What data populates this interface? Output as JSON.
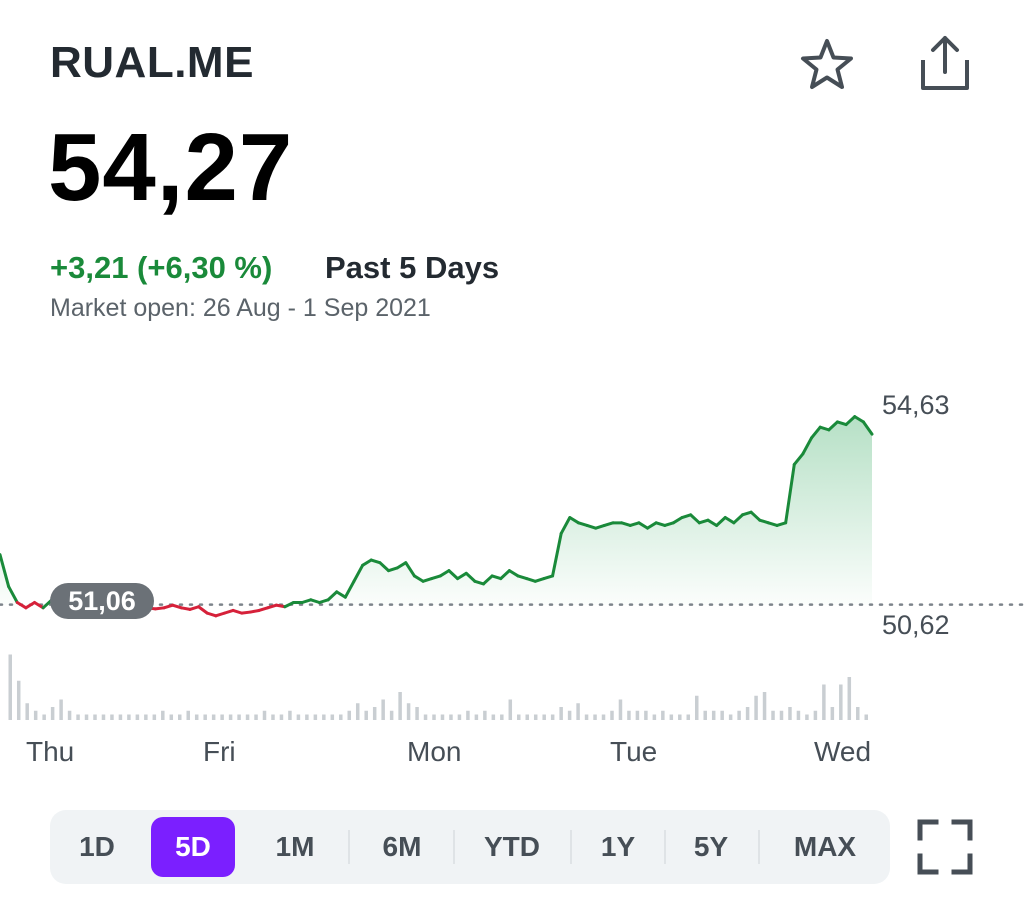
{
  "header": {
    "ticker": "RUAL.ME",
    "star_icon": "star-icon",
    "share_icon": "share-icon"
  },
  "quote": {
    "price": "54,27",
    "change": "+3,21 (+6,30 %)",
    "period": "Past 5 Days",
    "market_status": "Market open: 26 Aug - 1 Sep 2021"
  },
  "chart_data": {
    "type": "line",
    "ylim": [
      50.62,
      54.63
    ],
    "y_tick_labels": [
      "54,63",
      "50,62"
    ],
    "previous_close": 51.06,
    "previous_close_label": "51,06",
    "x_day_labels": [
      "Thu",
      "Fri",
      "Mon",
      "Tue",
      "Wed"
    ],
    "series": [
      {
        "values": [
          52.0,
          51.4,
          51.1,
          51.0,
          51.1,
          51.0,
          51.15,
          51.1,
          51.05,
          51.0,
          51.1,
          51.15,
          51.1,
          51.05,
          51.0,
          51.1,
          50.95,
          51.0,
          50.98,
          51.0,
          51.05,
          51.0,
          50.97,
          51.02,
          50.9,
          50.85,
          50.9,
          50.95,
          50.9,
          50.92,
          50.95,
          51.0,
          51.05,
          51.02,
          51.1,
          51.1,
          51.15,
          51.1,
          51.15,
          51.3,
          51.2,
          51.5,
          51.8,
          51.9,
          51.85,
          51.7,
          51.75,
          51.85,
          51.6,
          51.5,
          51.55,
          51.6,
          51.7,
          51.55,
          51.65,
          51.5,
          51.45,
          51.6,
          51.55,
          51.7,
          51.6,
          51.55,
          51.5,
          51.55,
          51.6,
          52.4,
          52.7,
          52.6,
          52.55,
          52.5,
          52.55,
          52.6,
          52.6,
          52.55,
          52.6,
          52.5,
          52.6,
          52.55,
          52.6,
          52.7,
          52.75,
          52.6,
          52.65,
          52.55,
          52.7,
          52.6,
          52.75,
          52.8,
          52.65,
          52.6,
          52.55,
          52.6,
          53.7,
          53.9,
          54.2,
          54.4,
          54.35,
          54.5,
          54.45,
          54.6,
          54.5,
          54.27
        ]
      }
    ],
    "volume": [
      0.9,
      0.55,
      0.25,
      0.15,
      0.1,
      0.2,
      0.3,
      0.15,
      0.1,
      0.1,
      0.1,
      0.1,
      0.1,
      0.1,
      0.1,
      0.1,
      0.1,
      0.1,
      0.15,
      0.1,
      0.1,
      0.15,
      0.1,
      0.1,
      0.1,
      0.1,
      0.1,
      0.1,
      0.1,
      0.1,
      0.15,
      0.1,
      0.1,
      0.15,
      0.1,
      0.1,
      0.1,
      0.1,
      0.1,
      0.1,
      0.15,
      0.25,
      0.15,
      0.2,
      0.3,
      0.15,
      0.4,
      0.25,
      0.2,
      0.1,
      0.1,
      0.1,
      0.1,
      0.1,
      0.15,
      0.1,
      0.15,
      0.1,
      0.1,
      0.3,
      0.1,
      0.1,
      0.1,
      0.1,
      0.1,
      0.2,
      0.15,
      0.25,
      0.1,
      0.1,
      0.1,
      0.15,
      0.3,
      0.15,
      0.15,
      0.15,
      0.1,
      0.15,
      0.1,
      0.1,
      0.1,
      0.35,
      0.15,
      0.15,
      0.15,
      0.1,
      0.15,
      0.2,
      0.35,
      0.4,
      0.15,
      0.15,
      0.2,
      0.15,
      0.1,
      0.15,
      0.5,
      0.2,
      0.5,
      0.6,
      0.2,
      0.1
    ]
  },
  "ranges": {
    "options": [
      "1D",
      "5D",
      "1M",
      "6M",
      "YTD",
      "1Y",
      "5Y",
      "MAX"
    ],
    "selected": "5D"
  },
  "colors": {
    "up": "#1a8a3a",
    "down": "#d6213a",
    "accent": "#7b1fff",
    "area_fill": "#3fae68"
  },
  "icons": {
    "fullscreen": "fullscreen-icon"
  }
}
